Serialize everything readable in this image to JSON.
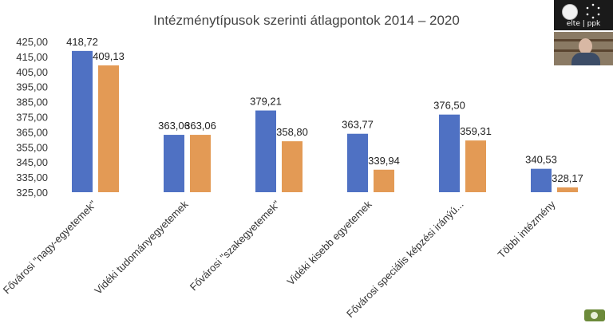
{
  "chart_data": {
    "type": "bar",
    "title": "Intézménytípusok szerinti átlagpontok 2014 – 2020",
    "categories": [
      "Fővárosi \"nagy-egyetemek\"",
      "Vidéki tudományegyetemek",
      "Fővárosi \"szakegyetemek\"",
      "Vidéki kisebb egyetemek",
      "Fővárosi speciális képzési iránýú...",
      "Többi intézmény"
    ],
    "series": [
      {
        "values": [
          418.72,
          363.06,
          379.21,
          363.77,
          376.5,
          340.53
        ],
        "color": "#4f71c3"
      },
      {
        "values": [
          409.13,
          363.06,
          358.8,
          339.94,
          359.31,
          328.17
        ],
        "color": "#e39a55"
      }
    ],
    "data_labels": [
      [
        "418,72",
        "363,06",
        "379,21",
        "363,77",
        "376,50",
        "340,53"
      ],
      [
        "409,13",
        "363,06",
        "358,80",
        "339,94",
        "359,31",
        "328,17"
      ]
    ],
    "yticks": [
      "325,00",
      "335,00",
      "345,00",
      "355,00",
      "365,00",
      "375,00",
      "385,00",
      "395,00",
      "405,00",
      "415,00",
      "425,00"
    ],
    "ylim": [
      325,
      425
    ],
    "grid": false,
    "legend": "none"
  },
  "overlay": {
    "logo_text": "elte | ppk"
  }
}
